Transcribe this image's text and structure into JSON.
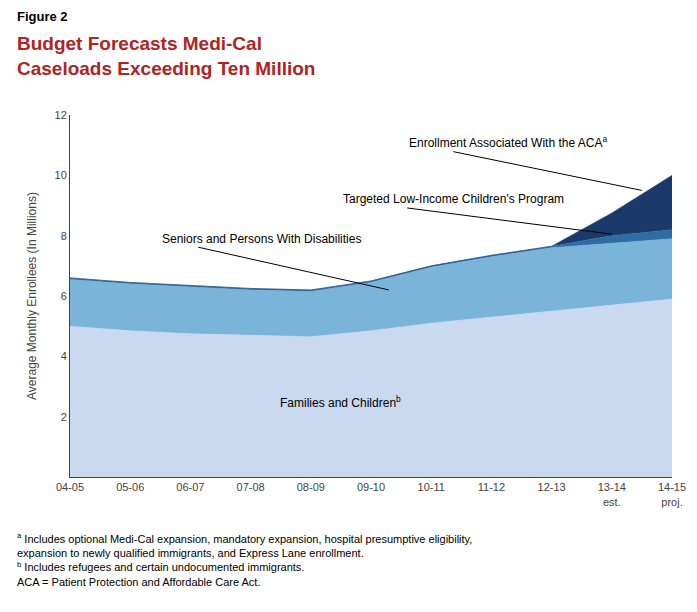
{
  "chart_data": {
    "type": "area",
    "stacked": true,
    "figure_label": "Figure 2",
    "title": "Budget Forecasts Medi-Cal\nCaseloads Exceeding Ten Million",
    "title_color": "#b22222",
    "ylabel": "Average Monthly Enrollees (In Millions)",
    "categories": [
      "04-05",
      "05-06",
      "06-07",
      "07-08",
      "08-09",
      "09-10",
      "10-11",
      "11-12",
      "12-13",
      "13-14\nest.",
      "14-15\nproj."
    ],
    "series": [
      {
        "name": "Families and Children",
        "note": "b",
        "color": "#c9d9f0",
        "values": [
          5.0,
          4.85,
          4.75,
          4.7,
          4.65,
          4.85,
          5.1,
          5.3,
          5.5,
          5.7,
          5.9
        ]
      },
      {
        "name": "Seniors and Persons With Disabilities",
        "color": "#7ab4d8",
        "values": [
          1.55,
          1.55,
          1.55,
          1.5,
          1.5,
          1.6,
          1.85,
          2.0,
          2.1,
          2.05,
          2.0
        ]
      },
      {
        "name": "Targeted Low-Income Children's Program",
        "color": "#2e6ca4",
        "values": [
          0.05,
          0.05,
          0.05,
          0.05,
          0.05,
          0.05,
          0.05,
          0.05,
          0.05,
          0.25,
          0.3
        ]
      },
      {
        "name": "Enrollment Associated With the ACA",
        "note": "a",
        "color": "#1b3a6b",
        "values": [
          0.0,
          0.0,
          0.0,
          0.0,
          0.0,
          0.0,
          0.0,
          0.0,
          0.0,
          0.75,
          1.8
        ]
      }
    ],
    "ylim": [
      0,
      12
    ],
    "yticks": [
      2,
      4,
      6,
      8,
      10,
      12
    ],
    "grid": false,
    "footnotes": [
      {
        "mark": "a",
        "text": "Includes optional Medi-Cal expansion, mandatory expansion, hospital presumptive eligibility,\nexpansion to newly qualified immigrants, and Express Lane enrollment."
      },
      {
        "mark": "b",
        "text": "Includes refugees and certain undocumented immigrants."
      },
      {
        "text": "ACA = Patient Protection and Affordable Care Act."
      }
    ]
  }
}
